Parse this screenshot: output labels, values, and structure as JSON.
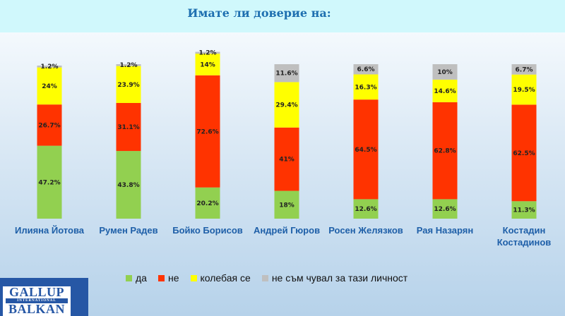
{
  "header": {
    "title": "Имате  ли доверие на:"
  },
  "logo": {
    "line1": "GALLUP",
    "line2": "INTERNATIONAL",
    "line3": "BALKAN"
  },
  "chart_data": {
    "type": "bar",
    "stacked": true,
    "title": "Имате  ли доверие на:",
    "categories": [
      "Илияна Йотова",
      "Румен Радев",
      "Бойко Борисов",
      "Андрей Гюров",
      "Росен Желязков",
      "Рая Назарян",
      "Костадин Костадинов"
    ],
    "series": [
      {
        "name": "да",
        "color": "#92d050",
        "values": [
          47.2,
          43.8,
          20.2,
          18,
          12.6,
          12.6,
          11.3
        ]
      },
      {
        "name": "не",
        "color": "#ff3300",
        "values": [
          26.7,
          31.1,
          72.6,
          41,
          64.5,
          62.8,
          62.5
        ]
      },
      {
        "name": "колебая се",
        "color": "#ffff00",
        "values": [
          24,
          23.9,
          14,
          29.4,
          16.3,
          14.6,
          19.5
        ]
      },
      {
        "name": "не съм чувал за тази личност",
        "color": "#bfbfbf",
        "values": [
          1.2,
          1.2,
          1.2,
          11.6,
          6.6,
          10,
          6.7
        ]
      }
    ],
    "labels": [
      [
        "47.2%",
        "43.8%",
        "20.2%",
        "18%",
        "12.6%",
        "12.6%",
        "11.3%"
      ],
      [
        "26.7%",
        "31.1%",
        "72.6%",
        "41%",
        "64.5%",
        "62.8%",
        "62.5%"
      ],
      [
        "24%",
        "23.9%",
        "14%",
        "29.4%",
        "16.3%",
        "14.6%",
        "19.5%"
      ],
      [
        "1.2%",
        "1.2%",
        "1.2%",
        "11.6%",
        "6.6%",
        "10%",
        "6.7%"
      ]
    ],
    "legend_position": "bottom",
    "grid": false
  }
}
